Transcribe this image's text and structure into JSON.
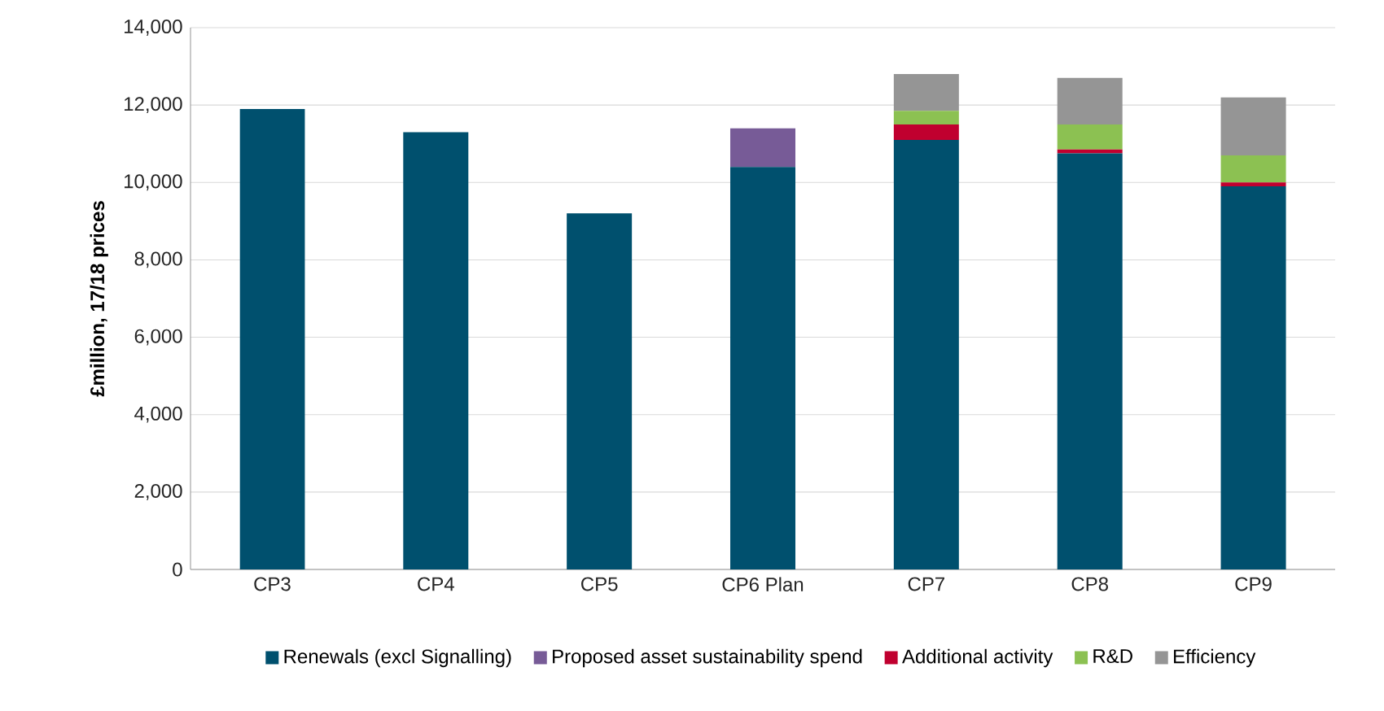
{
  "chart_data": {
    "type": "bar",
    "stacked": true,
    "ylabel": "£million, 17/18 prices",
    "categories": [
      "CP3",
      "CP4",
      "CP5",
      "CP6 Plan",
      "CP7",
      "CP8",
      "CP9"
    ],
    "series": [
      {
        "name": "Renewals (excl Signalling)",
        "color": "#00506e",
        "values": [
          11900,
          11300,
          9200,
          10400,
          11100,
          10750,
          9900
        ]
      },
      {
        "name": "Proposed asset sustainability spend",
        "color": "#775b97",
        "values": [
          0,
          0,
          0,
          1000,
          0,
          0,
          0
        ]
      },
      {
        "name": "Additional activity",
        "color": "#c0002f",
        "values": [
          0,
          0,
          0,
          0,
          400,
          100,
          100
        ]
      },
      {
        "name": "R&D",
        "color": "#8cc152",
        "values": [
          0,
          0,
          0,
          0,
          350,
          650,
          700
        ]
      },
      {
        "name": "Efficiency",
        "color": "#959595",
        "values": [
          0,
          0,
          0,
          0,
          950,
          1200,
          1500
        ]
      }
    ],
    "ylim": [
      0,
      14000
    ],
    "yticks": [
      0,
      {
        "value": 2000,
        "label": "2,000"
      },
      {
        "value": 4000,
        "label": "4,000"
      },
      {
        "value": 6000,
        "label": "6,000"
      },
      {
        "value": 8000,
        "label": "8,000"
      },
      {
        "value": 10000,
        "label": "10,000"
      },
      {
        "value": 12000,
        "label": "12,000"
      },
      {
        "value": 14000,
        "label": "14,000"
      }
    ],
    "grid": "y",
    "legend": "bottom"
  }
}
